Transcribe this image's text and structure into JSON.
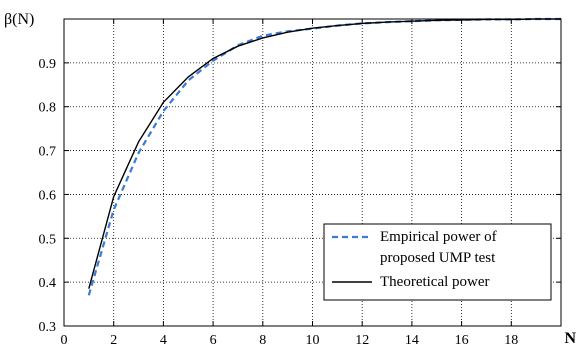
{
  "chart_data": {
    "type": "line",
    "title": "",
    "xlabel": "N",
    "ylabel": "β(N)",
    "xlim": [
      0,
      20
    ],
    "ylim": [
      0.3,
      1.0
    ],
    "xticks": [
      "0",
      "2",
      "4",
      "6",
      "8",
      "10",
      "12",
      "14",
      "16",
      "18"
    ],
    "yticks": [
      "0.3",
      "0.4",
      "0.5",
      "0.6",
      "0.7",
      "0.8",
      "0.9"
    ],
    "grid": true,
    "legend_position": "bottom-right",
    "series": [
      {
        "name": "Empirical power of proposed UMP test",
        "legend_lines": [
          "Empirical power of",
          "proposed UMP test"
        ],
        "style": "dashed",
        "color": "#3a7bd5",
        "x": [
          1,
          2,
          3,
          4,
          5,
          6,
          7,
          8,
          9,
          10,
          11,
          12,
          13,
          14,
          15,
          16,
          17,
          18,
          19,
          20
        ],
        "y": [
          0.37,
          0.565,
          0.695,
          0.79,
          0.86,
          0.905,
          0.94,
          0.962,
          0.972,
          0.978,
          0.985,
          0.99,
          0.993,
          0.995,
          0.997,
          0.998,
          0.999,
          0.999,
          1.0,
          1.0
        ]
      },
      {
        "name": "Theoretical power",
        "legend_lines": [
          "Theoretical power"
        ],
        "style": "solid",
        "color": "#000000",
        "x": [
          1,
          2,
          3,
          4,
          5,
          6,
          7,
          8,
          9,
          10,
          11,
          12,
          13,
          14,
          15,
          16,
          17,
          18,
          19,
          20
        ],
        "y": [
          0.385,
          0.595,
          0.72,
          0.81,
          0.868,
          0.91,
          0.938,
          0.957,
          0.97,
          0.979,
          0.985,
          0.99,
          0.993,
          0.995,
          0.997,
          0.998,
          0.999,
          0.999,
          1.0,
          1.0
        ]
      }
    ]
  }
}
